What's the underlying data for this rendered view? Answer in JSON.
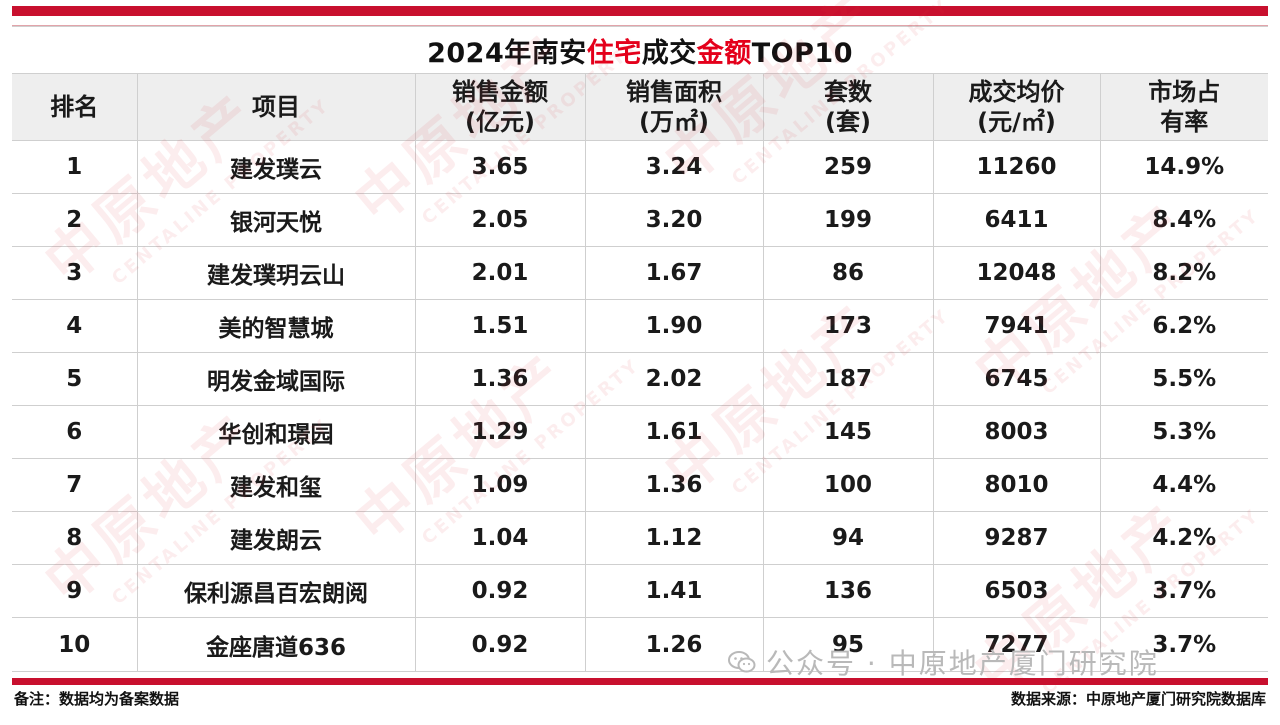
{
  "watermark": {
    "text_cn": "中原地产",
    "text_en": "CENTALINE PROPERTY"
  },
  "title": {
    "part1": "2024年南安",
    "highlight1": "住宅",
    "part2": "成交",
    "highlight2": "金额",
    "part3": "TOP10",
    "highlight_color": "#e4001b"
  },
  "headers": [
    {
      "line1": "排名",
      "line2": ""
    },
    {
      "line1": "项目",
      "line2": ""
    },
    {
      "line1": "销售金额",
      "line2": "(亿元)"
    },
    {
      "line1": "销售面积",
      "line2": "(万㎡)"
    },
    {
      "line1": "套数",
      "line2": "(套)"
    },
    {
      "line1": "成交均价",
      "line2": "(元/㎡)"
    },
    {
      "line1": "市场占",
      "line2": "有率"
    }
  ],
  "rows": [
    {
      "rank": "1",
      "project": "建发璞云",
      "amount": "3.65",
      "area": "3.24",
      "units": "259",
      "price": "11260",
      "share": "14.9%"
    },
    {
      "rank": "2",
      "project": "银河天悦",
      "amount": "2.05",
      "area": "3.20",
      "units": "199",
      "price": "6411",
      "share": "8.4%"
    },
    {
      "rank": "3",
      "project": "建发璞玥云山",
      "amount": "2.01",
      "area": "1.67",
      "units": "86",
      "price": "12048",
      "share": "8.2%"
    },
    {
      "rank": "4",
      "project": "美的智慧城",
      "amount": "1.51",
      "area": "1.90",
      "units": "173",
      "price": "7941",
      "share": "6.2%"
    },
    {
      "rank": "5",
      "project": "明发金域国际",
      "amount": "1.36",
      "area": "2.02",
      "units": "187",
      "price": "6745",
      "share": "5.5%"
    },
    {
      "rank": "6",
      "project": "华创和璟园",
      "amount": "1.29",
      "area": "1.61",
      "units": "145",
      "price": "8003",
      "share": "5.3%"
    },
    {
      "rank": "7",
      "project": "建发和玺",
      "amount": "1.09",
      "area": "1.36",
      "units": "100",
      "price": "8010",
      "share": "4.4%"
    },
    {
      "rank": "8",
      "project": "建发朗云",
      "amount": "1.04",
      "area": "1.12",
      "units": "94",
      "price": "9287",
      "share": "4.2%"
    },
    {
      "rank": "9",
      "project": "保利源昌百宏朗阅",
      "amount": "0.92",
      "area": "1.41",
      "units": "136",
      "price": "6503",
      "share": "3.7%"
    },
    {
      "rank": "10",
      "project": "金座唐道636",
      "amount": "0.92",
      "area": "1.26",
      "units": "95",
      "price": "7277",
      "share": "3.7%"
    }
  ],
  "wechat": {
    "text": "公众号 · 中原地产厦门研究院",
    "icon": "wechat-icon"
  },
  "footer": {
    "note": "备注：数据均为备案数据",
    "source": "数据来源：中原地产厦门研究院数据库"
  },
  "colors": {
    "accent": "#c8102e",
    "header_bg": "#eeeeee",
    "highlight": "#e4001b"
  }
}
